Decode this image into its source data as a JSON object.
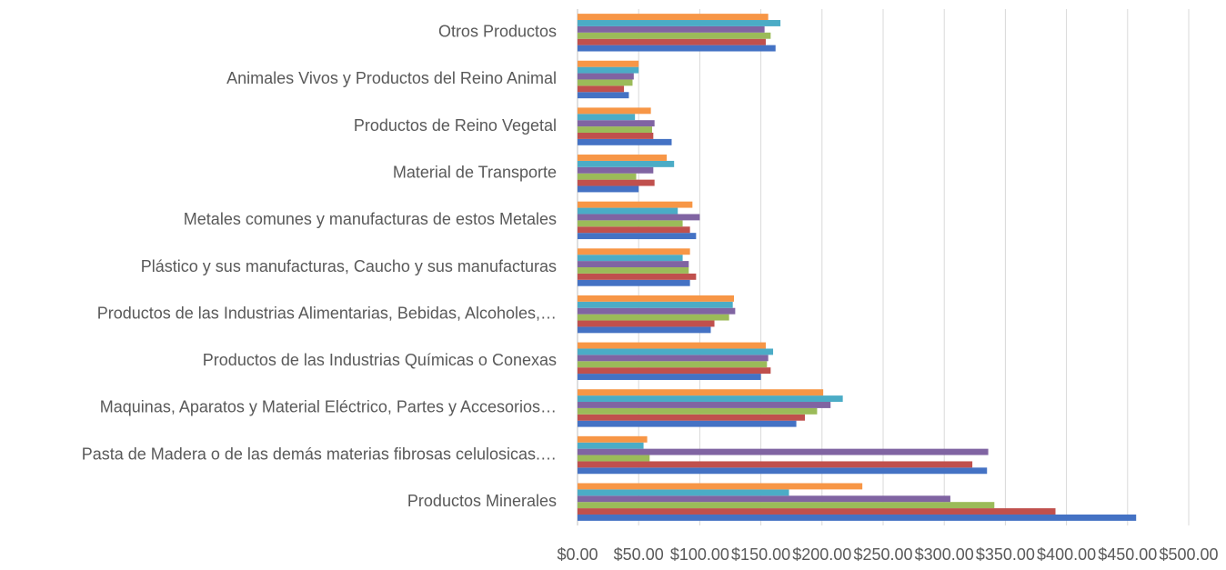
{
  "chart_data": {
    "type": "barh",
    "categories": [
      "Productos Minerales",
      "Pasta de Madera o de las demás materias fibrosas celulosicas.…",
      "Maquinas, Aparatos y Material Eléctrico, Partes y Accesorios…",
      "Productos de las Industrias Químicas o Conexas",
      "Productos de las Industrias Alimentarias, Bebidas, Alcoholes,…",
      "Plástico y sus manufacturas, Caucho y sus manufacturas",
      "Metales comunes y manufacturas de estos Metales",
      "Material de Transporte",
      "Productos de Reino Vegetal",
      "Animales Vivos y Productos del Reino Animal",
      "Otros Productos"
    ],
    "series": [
      {
        "color": "#4472c4",
        "values": [
          457,
          335,
          179,
          150,
          109,
          92,
          97,
          50,
          77,
          42,
          162
        ]
      },
      {
        "color": "#c0504d",
        "values": [
          391,
          323,
          186,
          158,
          112,
          97,
          92,
          63,
          62,
          38,
          154
        ]
      },
      {
        "color": "#9bbb59",
        "values": [
          341,
          59,
          196,
          155,
          124,
          91,
          86,
          48,
          61,
          45,
          158
        ]
      },
      {
        "color": "#8064a2",
        "values": [
          305,
          336,
          207,
          156,
          129,
          91,
          100,
          62,
          63,
          46,
          153
        ]
      },
      {
        "color": "#4bacc6",
        "values": [
          173,
          54,
          217,
          160,
          127,
          86,
          82,
          79,
          47,
          50,
          166
        ]
      },
      {
        "color": "#f79646",
        "values": [
          233,
          57,
          201,
          154,
          128,
          92,
          94,
          73,
          60,
          50,
          156
        ]
      }
    ],
    "xlim": [
      0,
      500
    ],
    "xticks": [
      {
        "value": 0,
        "label": "$0.00"
      },
      {
        "value": 50,
        "label": "$50.00"
      },
      {
        "value": 100,
        "label": "$100.00"
      },
      {
        "value": 150,
        "label": "$150.00"
      },
      {
        "value": 200,
        "label": "$200.00"
      },
      {
        "value": 250,
        "label": "$250.00"
      },
      {
        "value": 300,
        "label": "$300.00"
      },
      {
        "value": 350,
        "label": "$350.00"
      },
      {
        "value": 400,
        "label": "$400.00"
      },
      {
        "value": 450,
        "label": "$450.00"
      },
      {
        "value": 500,
        "label": "$500.00"
      }
    ],
    "grid": true
  }
}
